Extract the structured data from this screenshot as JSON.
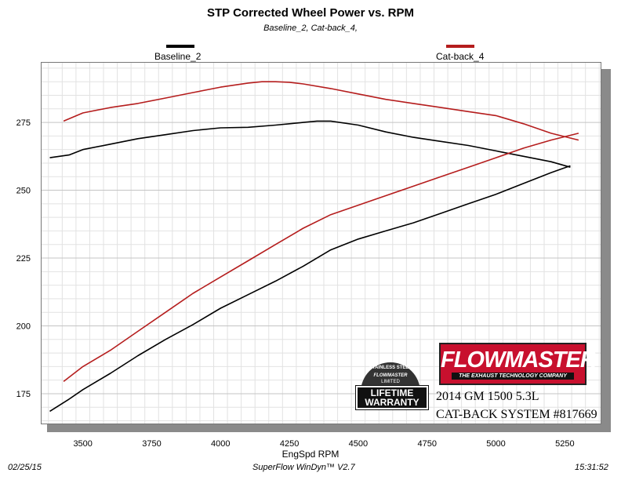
{
  "chart_data": {
    "type": "line",
    "title": "STP Corrected Wheel Power vs. RPM",
    "subtitle": "Baseline_2, Cat-back_4,",
    "xlabel": "EngSpd  RPM",
    "ylabel": "",
    "xlim": [
      3350,
      5380
    ],
    "ylim": [
      164,
      297
    ],
    "x_ticks": [
      3500,
      3750,
      4000,
      4250,
      4500,
      4750,
      5000,
      5250
    ],
    "y_ticks": [
      175,
      200,
      225,
      250,
      275
    ],
    "grid": true,
    "legend_position": "top",
    "series": [
      {
        "name": "Baseline_2",
        "color": "#000000",
        "curves": [
          {
            "x": [
              3380,
              3450,
              3500,
              3600,
              3700,
              3800,
              3900,
              4000,
              4100,
              4200,
              4250,
              4300,
              4350,
              4400,
              4500,
              4600,
              4700,
              4800,
              4900,
              5000,
              5100,
              5200,
              5270
            ],
            "y": [
              262,
              263,
              265,
              267,
              269,
              270.5,
              272,
              273,
              273.2,
              274,
              274.5,
              275,
              275.5,
              275.5,
              274,
              271.5,
              269.5,
              268,
              266.5,
              264.5,
              262.5,
              260.5,
              258.5
            ]
          },
          {
            "x": [
              3380,
              3450,
              3500,
              3600,
              3700,
              3800,
              3900,
              4000,
              4100,
              4200,
              4300,
              4400,
              4500,
              4600,
              4700,
              4800,
              4900,
              5000,
              5100,
              5200,
              5270
            ],
            "y": [
              168.5,
              173,
              176.5,
              182.5,
              189,
              195,
              200.5,
              206.5,
              211.5,
              216.5,
              222,
              228,
              232,
              235,
              238,
              241.5,
              245,
              248.5,
              252.5,
              256.5,
              259
            ]
          }
        ]
      },
      {
        "name": "Cat-back_4",
        "color": "#b51d1d",
        "curves": [
          {
            "x": [
              3430,
              3500,
              3600,
              3700,
              3800,
              3900,
              4000,
              4100,
              4150,
              4200,
              4250,
              4300,
              4400,
              4500,
              4600,
              4700,
              4800,
              4900,
              5000,
              5100,
              5200,
              5300
            ],
            "y": [
              275.5,
              278.5,
              280.5,
              282,
              284,
              286,
              288,
              289.5,
              290,
              290,
              289.8,
              289.2,
              287.5,
              285.5,
              283.5,
              282,
              280.5,
              279,
              277.5,
              274.5,
              271,
              268.5
            ]
          },
          {
            "x": [
              3430,
              3500,
              3600,
              3700,
              3800,
              3900,
              4000,
              4100,
              4200,
              4300,
              4400,
              4500,
              4600,
              4700,
              4800,
              4900,
              5000,
              5100,
              5200,
              5300
            ],
            "y": [
              179.5,
              185,
              191,
              198,
              205,
              212,
              218,
              224,
              230,
              236,
              241,
              244.5,
              248,
              251.5,
              255,
              258.5,
              262,
              265.5,
              268.5,
              271
            ]
          }
        ]
      }
    ]
  },
  "footer": {
    "date": "02/25/15",
    "app": "SuperFlow WinDyn™ V2.7",
    "time": "15:31:52"
  },
  "badge": {
    "brand": "FLOWMASTER",
    "tagline": "THE EXHAUST TECHNOLOGY COMPANY",
    "vehicle": "2014 GM 1500 5.3L",
    "system": "CAT-BACK SYSTEM #817669"
  },
  "warranty": {
    "top": "STAINLESS STEEL",
    "brand": "FLOWMASTER",
    "limited": "LIMITED",
    "main_line1": "LIFETIME",
    "main_line2": "WARRANTY"
  }
}
